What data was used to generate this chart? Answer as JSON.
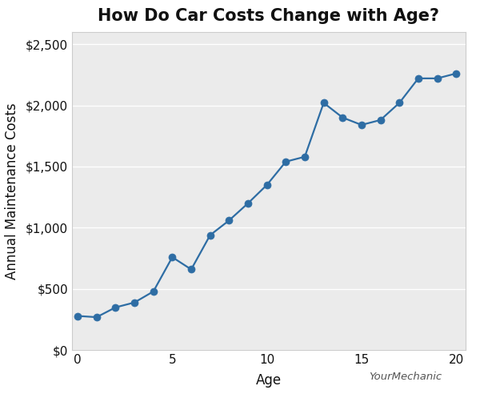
{
  "title": "How Do Car Costs Change with Age?",
  "xlabel": "Age",
  "ylabel": "Annual Maintenance Costs",
  "ages": [
    0,
    1,
    2,
    3,
    4,
    5,
    6,
    7,
    8,
    9,
    10,
    11,
    12,
    13,
    14,
    15,
    16,
    17,
    18,
    19,
    20
  ],
  "costs": [
    280,
    270,
    350,
    390,
    480,
    760,
    660,
    940,
    1060,
    1200,
    1350,
    1540,
    1580,
    2020,
    1900,
    1840,
    1880,
    2020,
    2220,
    2220,
    2260
  ],
  "line_color": "#2e6da4",
  "marker_color": "#2e6da4",
  "plot_bg_color": "#ebebeb",
  "fig_bg_color": "#ffffff",
  "ylim": [
    0,
    2600
  ],
  "xlim": [
    -0.3,
    20.5
  ],
  "yticks": [
    0,
    500,
    1000,
    1500,
    2000,
    2500
  ],
  "xticks": [
    0,
    5,
    10,
    15,
    20
  ],
  "watermark": "YourMechanic",
  "title_fontsize": 15,
  "axis_label_fontsize": 12,
  "tick_fontsize": 11
}
